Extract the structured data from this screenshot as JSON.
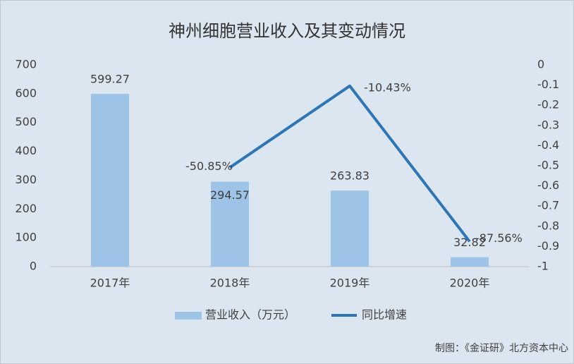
{
  "chart_data": {
    "type": "bar",
    "title": "神州细胞营业收入及其变动情况",
    "categories": [
      "2017年",
      "2018年",
      "2019年",
      "2020年"
    ],
    "series": [
      {
        "name": "营业收入（万元）",
        "type": "bar",
        "color": "#9dc3e6",
        "values": [
          599.27,
          294.57,
          263.83,
          32.82
        ]
      },
      {
        "name": "同比增速",
        "type": "line",
        "axis": "y2",
        "color": "#2e75b6",
        "values": [
          null,
          -0.5085,
          -0.1043,
          -0.8756
        ],
        "value_labels": [
          null,
          "-50.85%",
          "-10.43%",
          "-87.56%"
        ]
      }
    ],
    "ylim": [
      0,
      700
    ],
    "yticks": [
      0,
      100,
      200,
      300,
      400,
      500,
      600,
      700
    ],
    "y2lim": [
      -1,
      0
    ],
    "y2ticks": [
      0,
      -0.1,
      -0.2,
      -0.3,
      -0.4,
      -0.5,
      -0.6,
      -0.7,
      -0.8,
      -0.9,
      -1
    ],
    "grid": false,
    "legend": "bottom",
    "source": "制图：《金证研》北方资本中心"
  }
}
